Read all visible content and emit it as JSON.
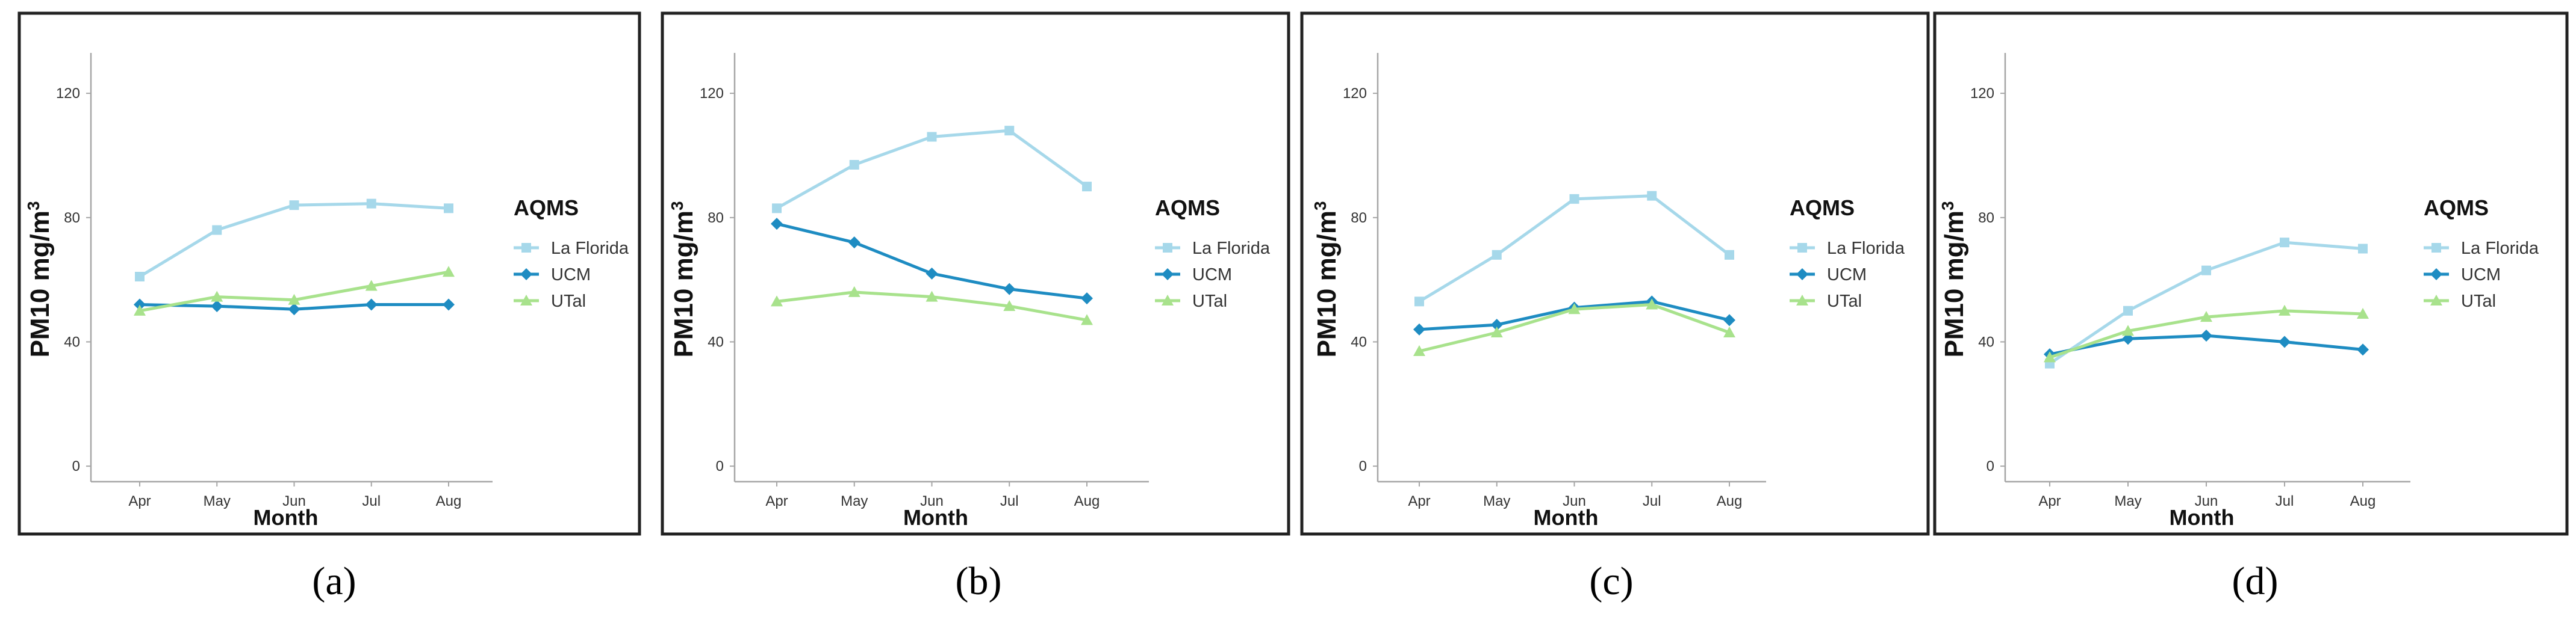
{
  "figure": {
    "panel_labels": [
      "(a)",
      "(b)",
      "(c)",
      "(d)"
    ]
  },
  "colors": {
    "La Florida": "#A6D8EA",
    "UCM": "#1E8CC2",
    "UTal": "#A8E28C",
    "axis": "#A6A6A6",
    "frame": "#222222",
    "text": "#333333"
  },
  "chart_data": [
    {
      "type": "line",
      "panel": "(a)",
      "categories": [
        "Apr",
        "May",
        "Jun",
        "Jul",
        "Aug"
      ],
      "xlabel": "Month",
      "ylabel_main": "PM10 mg/m",
      "ylabel_sup": "3",
      "yticks": [
        0,
        40,
        80,
        120
      ],
      "ylim": [
        -5,
        133
      ],
      "legend_title": "AQMS",
      "series": [
        {
          "name": "La Florida",
          "marker": "square",
          "values": [
            61,
            76,
            84,
            84.5,
            83
          ]
        },
        {
          "name": "UCM",
          "marker": "diamond",
          "values": [
            52,
            51.5,
            50.5,
            52,
            52
          ]
        },
        {
          "name": "UTal",
          "marker": "triangle",
          "values": [
            50,
            54.5,
            53.5,
            58,
            62.5
          ]
        }
      ]
    },
    {
      "type": "line",
      "panel": "(b)",
      "categories": [
        "Apr",
        "May",
        "Jun",
        "Jul",
        "Aug"
      ],
      "xlabel": "Month",
      "ylabel_main": "PM10 mg/m",
      "ylabel_sup": "3",
      "yticks": [
        0,
        40,
        80,
        120
      ],
      "ylim": [
        -5,
        133
      ],
      "legend_title": "AQMS",
      "series": [
        {
          "name": "La Florida",
          "marker": "square",
          "values": [
            83,
            97,
            106,
            108,
            90
          ]
        },
        {
          "name": "UCM",
          "marker": "diamond",
          "values": [
            78,
            72,
            62,
            57,
            54
          ]
        },
        {
          "name": "UTal",
          "marker": "triangle",
          "values": [
            53,
            56,
            54.5,
            51.5,
            47
          ]
        }
      ]
    },
    {
      "type": "line",
      "panel": "(c)",
      "categories": [
        "Apr",
        "May",
        "Jun",
        "Jul",
        "Aug"
      ],
      "xlabel": "Month",
      "ylabel_main": "PM10 mg/m",
      "ylabel_sup": "3",
      "yticks": [
        0,
        40,
        80,
        120
      ],
      "ylim": [
        -5,
        133
      ],
      "legend_title": "AQMS",
      "series": [
        {
          "name": "La Florida",
          "marker": "square",
          "values": [
            53,
            68,
            86,
            87,
            68
          ]
        },
        {
          "name": "UCM",
          "marker": "diamond",
          "values": [
            44,
            45.5,
            51,
            53,
            47
          ]
        },
        {
          "name": "UTal",
          "marker": "triangle",
          "values": [
            37,
            43,
            50.5,
            52,
            43
          ]
        }
      ]
    },
    {
      "type": "line",
      "panel": "(d)",
      "categories": [
        "Apr",
        "May",
        "Jun",
        "Jul",
        "Aug"
      ],
      "xlabel": "Month",
      "ylabel_main": "PM10 mg/m",
      "ylabel_sup": "3",
      "yticks": [
        0,
        40,
        80,
        120
      ],
      "ylim": [
        -5,
        133
      ],
      "legend_title": "AQMS",
      "series": [
        {
          "name": "La Florida",
          "marker": "square",
          "values": [
            33,
            50,
            63,
            72,
            70
          ]
        },
        {
          "name": "UCM",
          "marker": "diamond",
          "values": [
            36,
            41,
            42,
            40,
            37.5
          ]
        },
        {
          "name": "UTal",
          "marker": "triangle",
          "values": [
            35,
            43.5,
            48,
            50,
            49
          ]
        }
      ]
    }
  ]
}
